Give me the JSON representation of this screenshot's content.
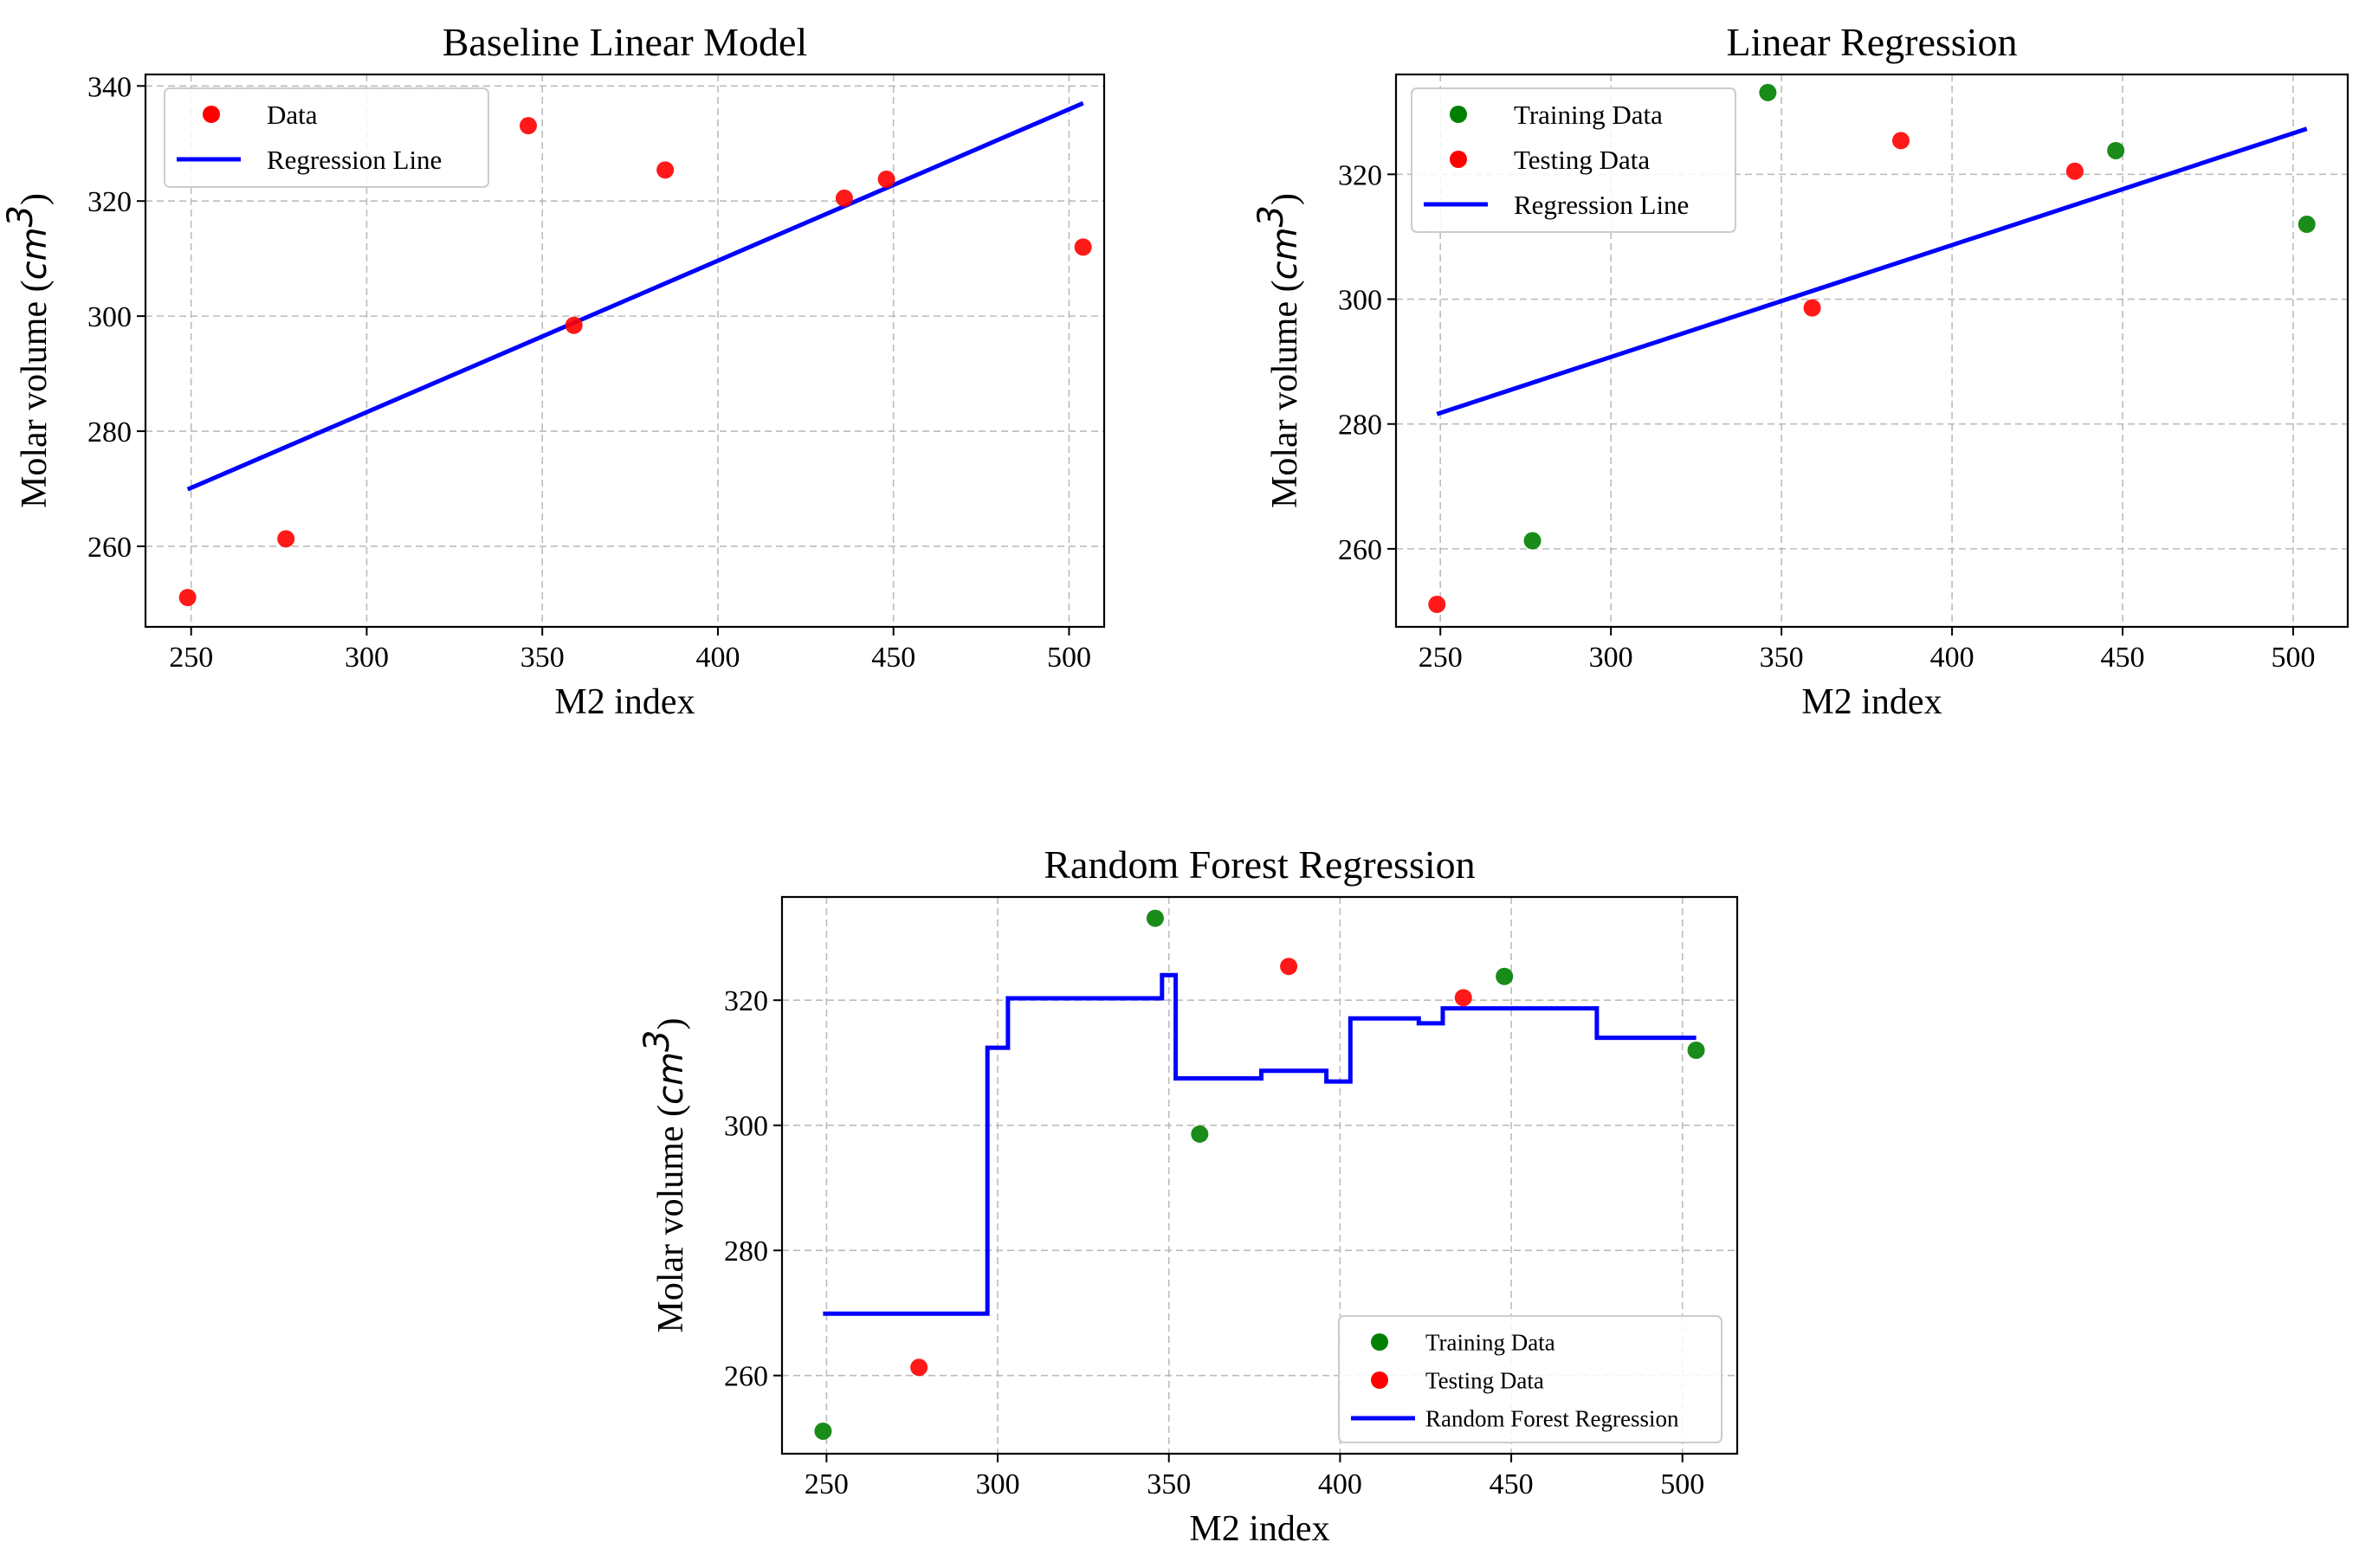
{
  "colors": {
    "data_red": "#ff0000",
    "train_green": "#008000",
    "line_blue": "#0000ff",
    "grid": "#b0b0b0"
  },
  "chart_data": [
    {
      "type": "scatter",
      "title": "Baseline Linear Model",
      "xlabel": "M2 index",
      "ylabel": "Molar volume (",
      "ylabel_unit": "cm",
      "ylabel_exp": "3",
      "ylabel_close": ")",
      "xlim": [
        237,
        510
      ],
      "ylim": [
        246,
        342
      ],
      "xticks": [
        250,
        300,
        350,
        400,
        450,
        500
      ],
      "yticks": [
        260,
        280,
        300,
        320,
        340
      ],
      "legend_position": "top-left",
      "grid": true,
      "series": [
        {
          "name": "Data",
          "kind": "scatter",
          "color": "#ff0000",
          "points": [
            [
              249,
              251.1
            ],
            [
              277,
              261.3
            ],
            [
              346,
              333.1
            ],
            [
              359,
              298.4
            ],
            [
              385,
              325.4
            ],
            [
              436,
              320.5
            ],
            [
              448,
              323.8
            ],
            [
              504,
              312.0
            ]
          ]
        },
        {
          "name": "Regression Line",
          "kind": "line",
          "color": "#0000ff",
          "points": [
            [
              249,
              269.9
            ],
            [
              504,
              337.0
            ]
          ]
        }
      ]
    },
    {
      "type": "scatter",
      "title": "Linear Regression",
      "xlabel": "M2 index",
      "ylabel": "Molar volume (",
      "ylabel_unit": "cm",
      "ylabel_exp": "3",
      "ylabel_close": ")",
      "xlim": [
        237,
        516
      ],
      "ylim": [
        247.5,
        336
      ],
      "xticks": [
        250,
        300,
        350,
        400,
        450,
        500
      ],
      "yticks": [
        260,
        280,
        300,
        320
      ],
      "legend_position": "top-left",
      "grid": true,
      "series": [
        {
          "name": "Training Data",
          "kind": "scatter",
          "color": "#008000",
          "points": [
            [
              277,
              261.3
            ],
            [
              346,
              333.1
            ],
            [
              448,
              323.8
            ],
            [
              504,
              312.0
            ]
          ]
        },
        {
          "name": "Testing Data",
          "kind": "scatter",
          "color": "#ff0000",
          "points": [
            [
              249,
              251.1
            ],
            [
              359,
              298.6
            ],
            [
              385,
              325.4
            ],
            [
              436,
              320.5
            ]
          ]
        },
        {
          "name": "Regression Line",
          "kind": "line",
          "color": "#0000ff",
          "points": [
            [
              249,
              281.6
            ],
            [
              504,
              327.3
            ]
          ]
        }
      ]
    },
    {
      "type": "scatter",
      "title": "Random Forest Regression",
      "xlabel": "M2 index",
      "ylabel": "Molar volume (",
      "ylabel_unit": "cm",
      "ylabel_exp": "3",
      "ylabel_close": ")",
      "xlim": [
        237,
        516
      ],
      "ylim": [
        247.5,
        336.5
      ],
      "xticks": [
        250,
        300,
        350,
        400,
        450,
        500
      ],
      "yticks": [
        260,
        280,
        300,
        320
      ],
      "legend_position": "bottom-right",
      "grid": true,
      "series": [
        {
          "name": "Training Data",
          "kind": "scatter",
          "color": "#008000",
          "points": [
            [
              249,
              251.1
            ],
            [
              346,
              333.1
            ],
            [
              359,
              298.6
            ],
            [
              448,
              323.8
            ],
            [
              504,
              312.0
            ]
          ]
        },
        {
          "name": "Testing Data",
          "kind": "scatter",
          "color": "#ff0000",
          "points": [
            [
              277,
              261.3
            ],
            [
              385,
              325.4
            ],
            [
              436,
              320.4
            ]
          ]
        },
        {
          "name": "Random Forest Regression",
          "kind": "step",
          "color": "#0000ff",
          "points": [
            [
              249,
              269.9
            ],
            [
              297,
              269.9
            ],
            [
              297,
              312.4
            ],
            [
              303,
              312.4
            ],
            [
              303,
              320.3
            ],
            [
              348,
              320.3
            ],
            [
              348,
              324.0
            ],
            [
              352,
              324.0
            ],
            [
              352,
              307.5
            ],
            [
              377,
              307.5
            ],
            [
              377,
              308.7
            ],
            [
              396,
              308.7
            ],
            [
              396,
              307.0
            ],
            [
              403,
              307.0
            ],
            [
              403,
              317.1
            ],
            [
              423,
              317.1
            ],
            [
              423,
              316.3
            ],
            [
              430,
              316.3
            ],
            [
              430,
              318.7
            ],
            [
              475,
              318.7
            ],
            [
              475,
              314.0
            ],
            [
              504,
              314.0
            ]
          ]
        }
      ]
    }
  ]
}
